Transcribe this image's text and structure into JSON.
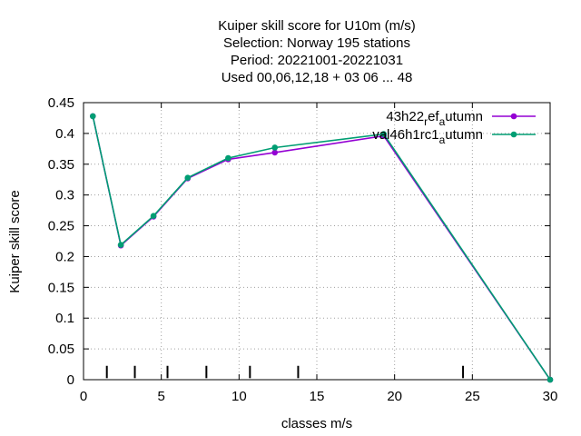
{
  "chart_data": {
    "type": "line",
    "title_lines": [
      "Kuiper skill score  for U10m (m/s)",
      "Selection: Norway    195 stations",
      "Period: 20221001-20221031",
      "Used  00,06,12,18  + 03 06 ... 48"
    ],
    "xlabel": "classes m/s",
    "ylabel": "Kuiper skill score",
    "xlim": [
      0,
      30
    ],
    "ylim": [
      0,
      0.45
    ],
    "x_ticks": [
      0,
      5,
      10,
      15,
      20,
      25,
      30
    ],
    "y_ticks": [
      0,
      0.05,
      0.1,
      0.15,
      0.2,
      0.25,
      0.3,
      0.35,
      0.4,
      0.45
    ],
    "x_tick_labels": [
      "0",
      "5",
      "10",
      "15",
      "20",
      "25",
      "30"
    ],
    "y_tick_labels": [
      "0",
      "0.05",
      "0.1",
      "0.15",
      "0.2",
      "0.25",
      "0.3",
      "0.35",
      "0.4",
      "0.45"
    ],
    "grid": true,
    "legend_position": "top-right",
    "class_boundaries": [
      1.5,
      3.3,
      5.4,
      7.9,
      10.7,
      13.8,
      24.4
    ],
    "series": [
      {
        "legend_main": "43h22",
        "legend_sub1": "r",
        "legend_mid": "ef",
        "legend_sub2": "a",
        "legend_end": "utumn",
        "color": "#9400d3",
        "x": [
          0.6,
          2.4,
          4.5,
          6.7,
          9.3,
          12.3,
          19.3,
          30.0
        ],
        "y": [
          0.428,
          0.218,
          0.265,
          0.327,
          0.358,
          0.369,
          0.396,
          0.0
        ]
      },
      {
        "legend_main": "val46h1rc1",
        "legend_sub1": "",
        "legend_mid": "",
        "legend_sub2": "a",
        "legend_end": "utumn",
        "color": "#009e73",
        "x": [
          0.6,
          2.4,
          4.5,
          6.7,
          9.3,
          12.3,
          19.3,
          30.0
        ],
        "y": [
          0.428,
          0.219,
          0.266,
          0.328,
          0.36,
          0.377,
          0.399,
          0.0
        ]
      }
    ]
  }
}
